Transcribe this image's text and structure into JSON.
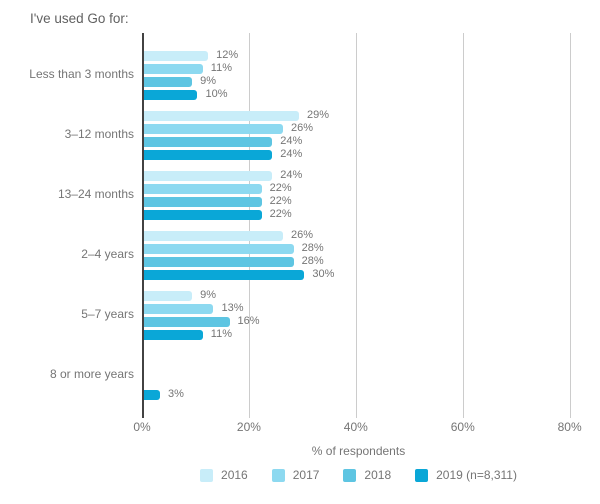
{
  "chart_data": {
    "type": "bar",
    "orientation": "horizontal",
    "title": "I've used Go for:",
    "xlabel": "% of respondents",
    "categories": [
      "Less than 3 months",
      "3–12 months",
      "13–24 months",
      "2–4 years",
      "5–7 years",
      "8 or more years"
    ],
    "series": [
      {
        "name": "2016",
        "color": "#c8edf9",
        "values": [
          12,
          29,
          24,
          26,
          9,
          null
        ]
      },
      {
        "name": "2017",
        "color": "#8dd9f0",
        "values": [
          11,
          26,
          22,
          28,
          13,
          null
        ]
      },
      {
        "name": "2018",
        "color": "#5ec5e2",
        "values": [
          9,
          24,
          22,
          28,
          16,
          null
        ]
      },
      {
        "name": "2019 (n=8,311)",
        "color": "#0aa7d7",
        "values": [
          10,
          24,
          22,
          30,
          11,
          3
        ]
      }
    ],
    "x_ticks": [
      "0%",
      "20%",
      "40%",
      "60%",
      "80%"
    ],
    "x_tick_values": [
      0,
      20,
      40,
      60,
      80
    ],
    "xlim": [
      0,
      81
    ],
    "value_label_suffix": "%",
    "grid": true,
    "legend_position": "bottom"
  },
  "colors": {
    "axis_line": "#424242",
    "gridline": "#cccccc",
    "title_text": "#616161",
    "label_text": "#757575",
    "background": "#ffffff"
  }
}
